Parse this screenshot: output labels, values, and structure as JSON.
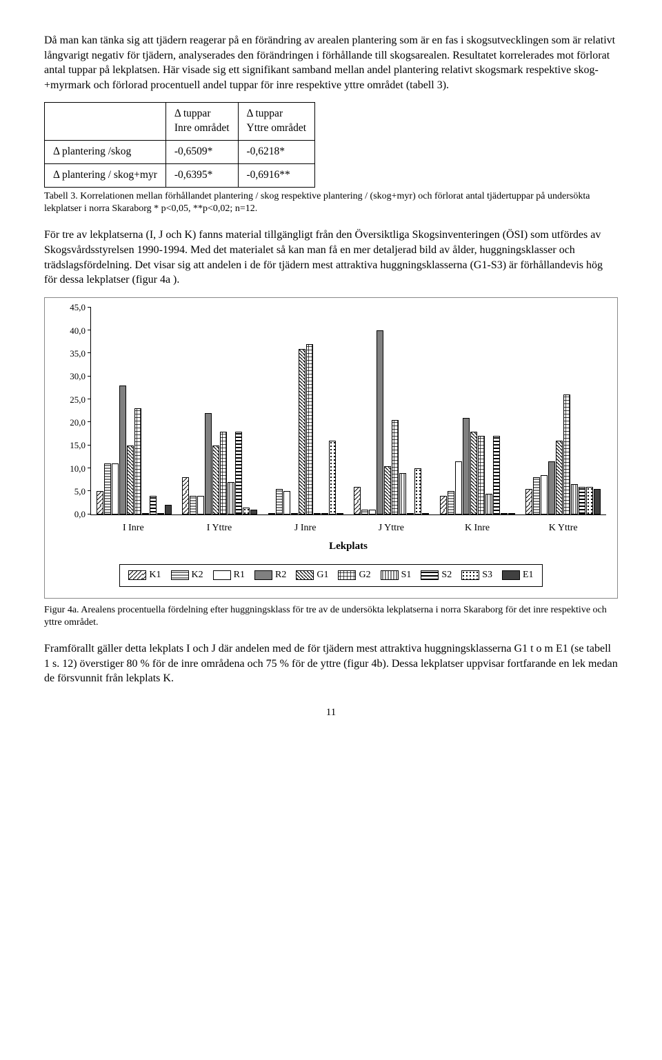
{
  "para1": "Då man kan tänka sig att tjädern reagerar på en förändring av arealen plantering som är en fas i skogsutvecklingen som är relativt långvarigt negativ för tjädern, analyserades den förändringen i förhållande till skogsarealen. Resultatet korrelerades mot förlorat antal tuppar på lekplatsen. Här visade sig ett signifikant samband mellan andel plantering relativt skogsmark respektive skog- +myrmark och förlorad procentuell andel tuppar för inre respektive yttre området (tabell 3).",
  "table3": {
    "col1_header": "Δ tuppar\nInre området",
    "col2_header": "Δ tuppar\nYttre området",
    "rows": [
      {
        "label": "Δ plantering /skog",
        "v1": "-0,6509*",
        "v2": "-0,6218*"
      },
      {
        "label": "Δ plantering / skog+myr",
        "v1": "-0,6395*",
        "v2": "-0,6916**"
      }
    ],
    "caption": "Tabell 3. Korrelationen mellan förhållandet plantering / skog respektive plantering / (skog+myr) och förlorat antal tjädertuppar  på undersökta lekplatser i norra Skaraborg  * p<0,05, **p<0,02; n=12."
  },
  "para2": "För tre av lekplatserna (I, J och K) fanns material tillgängligt från den Översiktliga Skogsinventeringen (ÖSI) som utfördes av Skogsvårdsstyrelsen 1990-1994. Med det materialet så kan man få en mer detaljerad bild av ålder, huggningsklasser och trädslagsfördelning. Det visar sig att andelen i de för tjädern mest attraktiva huggningsklasserna (G1-S3) är förhållandevis hög för dessa lekplatser (figur 4a ).",
  "chart": {
    "type": "bar",
    "ymax": 45,
    "ytick_step": 5,
    "categories": [
      "I  Inre",
      "I  Yttre",
      "J  Inre",
      "J  Yttre",
      "K  Inre",
      "K  Yttre"
    ],
    "series": [
      "K1",
      "K2",
      "R1",
      "R2",
      "G1",
      "G2",
      "S1",
      "S2",
      "S3",
      "E1"
    ],
    "patterns": {
      "K1": "diag-lt",
      "K2": "horiz",
      "R1": "white",
      "R2": "grey",
      "G1": "diag-rt",
      "G2": "grid",
      "S1": "vert-lines",
      "S2": "horiz-thick",
      "S3": "dots",
      "E1": "dark"
    },
    "values": {
      "I  Inre": [
        5.0,
        11.0,
        11.0,
        28.0,
        15.0,
        23.0,
        0.0,
        4.0,
        0.0,
        2.0
      ],
      "I  Yttre": [
        8.0,
        4.0,
        4.0,
        22.0,
        15.0,
        18.0,
        7.0,
        18.0,
        1.5,
        1.0
      ],
      "J  Inre": [
        0.0,
        5.5,
        5.0,
        0.0,
        36.0,
        37.0,
        0.0,
        0.0,
        16.0,
        0.0
      ],
      "J  Yttre": [
        6.0,
        1.0,
        1.0,
        40.0,
        10.5,
        20.5,
        9.0,
        0.0,
        10.0,
        0.0
      ],
      "K  Inre": [
        4.0,
        5.0,
        11.5,
        21.0,
        18.0,
        17.0,
        4.5,
        17.0,
        0.0,
        0.0
      ],
      "K  Yttre": [
        5.5,
        8.0,
        8.5,
        11.5,
        16.0,
        26.0,
        6.5,
        6.0,
        6.0,
        5.5
      ]
    },
    "xaxis_title": "Lekplats",
    "colors": {
      "grid_line": "#888888",
      "bg": "#ffffff"
    }
  },
  "fig4a_caption": "Figur 4a.  Arealens procentuella fördelning efter huggningsklass för tre av de undersökta lekplatserna i norra Skaraborg för det inre respektive och yttre området.",
  "para3": "Framförallt gäller detta lekplats I och J där andelen med de för tjädern mest attraktiva huggningsklasserna G1 t o m E1 (se tabell 1 s. 12) överstiger 80 % för de inre områdena och 75 % för de yttre (figur 4b). Dessa lekplatser uppvisar fortfarande en lek medan de försvunnit från lekplats K.",
  "page_number": "11"
}
